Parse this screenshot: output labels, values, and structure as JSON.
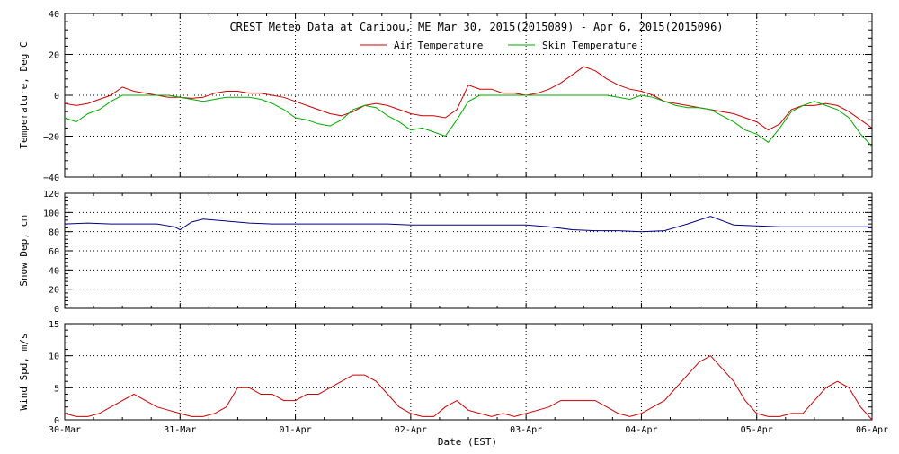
{
  "chart_data": {
    "title": "CREST Meteo Data at Caribou, ME   Mar 30, 2015(2015089) - Apr  6, 2015(2015096)",
    "xlabel": "Date (EST)",
    "x_ticks": [
      "30-Mar",
      "31-Mar",
      "01-Apr",
      "02-Apr",
      "03-Apr",
      "04-Apr",
      "05-Apr",
      "06-Apr"
    ],
    "x_range_days": [
      0,
      7
    ],
    "colors": {
      "air": "#cc0000",
      "skin": "#00aa00",
      "snow": "#000080",
      "wind": "#cc0000",
      "grid": "#000000"
    },
    "panels": [
      {
        "type": "line",
        "ylabel": "Temperature, Deg C",
        "ylim": [
          -40,
          40
        ],
        "y_ticks": [
          "40",
          "20",
          "0",
          "−20",
          "−40"
        ],
        "legend": {
          "placement": "top-center"
        },
        "series": [
          {
            "name": "Air Temperature",
            "key": "air",
            "x": [
              0,
              0.1,
              0.2,
              0.3,
              0.4,
              0.5,
              0.6,
              0.7,
              0.8,
              0.9,
              1.0,
              1.1,
              1.2,
              1.3,
              1.4,
              1.5,
              1.6,
              1.7,
              1.8,
              1.9,
              2.0,
              2.1,
              2.2,
              2.3,
              2.4,
              2.5,
              2.6,
              2.7,
              2.8,
              2.9,
              3.0,
              3.1,
              3.2,
              3.3,
              3.4,
              3.5,
              3.6,
              3.7,
              3.8,
              3.9,
              4.0,
              4.1,
              4.2,
              4.3,
              4.4,
              4.5,
              4.6,
              4.7,
              4.8,
              4.9,
              5.0,
              5.1,
              5.2,
              5.3,
              5.4,
              5.5,
              5.6,
              5.7,
              5.8,
              5.9,
              6.0,
              6.1,
              6.2,
              6.3,
              6.4,
              6.5,
              6.6,
              6.7,
              6.8,
              6.9,
              7.0
            ],
            "values": [
              -4,
              -5,
              -4,
              -2,
              0,
              4,
              2,
              1,
              0,
              -1,
              -1,
              -1.5,
              -1,
              1,
              2,
              2,
              1,
              1,
              0,
              -1,
              -3,
              -5,
              -7,
              -9,
              -10,
              -8,
              -5,
              -4,
              -5,
              -7,
              -9,
              -10,
              -10,
              -11,
              -7,
              5,
              3,
              3,
              1,
              1,
              0,
              1,
              3,
              6,
              10,
              14,
              12,
              8,
              5,
              3,
              2,
              0,
              -3,
              -4,
              -5,
              -6,
              -7,
              -8,
              -9,
              -11,
              -13,
              -17,
              -14,
              -7,
              -5,
              -5,
              -4,
              -5,
              -8,
              -12,
              -16
            ]
          },
          {
            "name": "Skin Temperature",
            "key": "skin",
            "x": [
              0,
              0.1,
              0.2,
              0.3,
              0.4,
              0.5,
              0.6,
              0.7,
              0.8,
              0.9,
              1.0,
              1.1,
              1.2,
              1.3,
              1.4,
              1.5,
              1.6,
              1.7,
              1.8,
              1.9,
              2.0,
              2.1,
              2.2,
              2.3,
              2.4,
              2.5,
              2.6,
              2.7,
              2.8,
              2.9,
              3.0,
              3.1,
              3.2,
              3.3,
              3.4,
              3.5,
              3.6,
              3.7,
              3.8,
              3.9,
              4.0,
              4.1,
              4.2,
              4.3,
              4.4,
              4.5,
              4.6,
              4.7,
              4.8,
              4.9,
              5.0,
              5.1,
              5.2,
              5.3,
              5.4,
              5.5,
              5.6,
              5.7,
              5.8,
              5.9,
              6.0,
              6.1,
              6.2,
              6.3,
              6.4,
              6.5,
              6.6,
              6.7,
              6.8,
              6.9,
              7.0
            ],
            "values": [
              -11,
              -13,
              -9,
              -7,
              -3,
              0,
              0,
              0,
              0,
              0,
              -1,
              -2,
              -3,
              -2,
              -1,
              -1,
              -1,
              -2,
              -4,
              -7,
              -11,
              -12,
              -14,
              -15,
              -12,
              -7,
              -5,
              -6,
              -10,
              -13,
              -17,
              -16,
              -18,
              -20,
              -12,
              -3,
              0,
              0,
              0,
              0,
              0,
              0,
              0,
              0,
              0,
              0,
              0,
              0,
              -1,
              -2,
              0,
              -1,
              -3,
              -5,
              -6,
              -6,
              -7,
              -10,
              -13,
              -17,
              -19,
              -23,
              -16,
              -8,
              -5,
              -3,
              -5,
              -7,
              -11,
              -19,
              -25
            ]
          }
        ]
      },
      {
        "type": "line",
        "ylabel": "Snow Dep, cm",
        "ylim": [
          0,
          120
        ],
        "y_ticks": [
          "120",
          "100",
          "80",
          "60",
          "40",
          "20",
          "0"
        ],
        "series": [
          {
            "key": "snow",
            "x": [
              0,
              0.2,
              0.4,
              0.6,
              0.8,
              0.95,
              1.0,
              1.05,
              1.1,
              1.2,
              1.4,
              1.6,
              1.8,
              2.0,
              2.2,
              2.4,
              2.6,
              2.8,
              3.0,
              3.2,
              3.4,
              3.6,
              3.8,
              4.0,
              4.2,
              4.4,
              4.6,
              4.8,
              5.0,
              5.2,
              5.4,
              5.6,
              5.8,
              6.0,
              6.2,
              6.4,
              6.6,
              6.8,
              7.0
            ],
            "values": [
              88,
              89,
              88,
              88,
              88,
              85,
              82,
              86,
              90,
              93,
              91,
              89,
              88,
              88,
              88,
              88,
              88,
              88,
              87,
              87,
              87,
              87,
              87,
              87,
              85,
              82,
              81,
              81,
              80,
              81,
              88,
              96,
              87,
              86,
              85,
              85,
              85,
              85,
              85
            ]
          }
        ]
      },
      {
        "type": "line",
        "ylabel": "Wind Spd, m/s",
        "ylim": [
          0,
          15
        ],
        "y_ticks": [
          "15",
          "10",
          "5",
          "0"
        ],
        "series": [
          {
            "key": "wind",
            "x": [
              0,
              0.1,
              0.2,
              0.3,
              0.4,
              0.5,
              0.6,
              0.7,
              0.8,
              0.9,
              1.0,
              1.1,
              1.2,
              1.3,
              1.4,
              1.5,
              1.6,
              1.7,
              1.8,
              1.9,
              2.0,
              2.1,
              2.2,
              2.3,
              2.4,
              2.5,
              2.6,
              2.7,
              2.8,
              2.9,
              3.0,
              3.1,
              3.2,
              3.3,
              3.4,
              3.5,
              3.6,
              3.7,
              3.8,
              3.9,
              4.0,
              4.1,
              4.2,
              4.3,
              4.4,
              4.5,
              4.6,
              4.7,
              4.8,
              4.9,
              5.0,
              5.1,
              5.2,
              5.3,
              5.4,
              5.5,
              5.6,
              5.7,
              5.8,
              5.9,
              6.0,
              6.1,
              6.2,
              6.3,
              6.4,
              6.5,
              6.6,
              6.7,
              6.8,
              6.9,
              7.0
            ],
            "values": [
              1,
              0.5,
              0.5,
              1,
              2,
              3,
              4,
              3,
              2,
              1.5,
              1,
              0.5,
              0.5,
              1,
              2,
              5,
              5,
              4,
              4,
              3,
              3,
              4,
              4,
              5,
              6,
              7,
              7,
              6,
              4,
              2,
              1,
              0.5,
              0.5,
              2,
              3,
              1.5,
              1,
              0.5,
              1,
              0.5,
              1,
              1.5,
              2,
              3,
              3,
              3,
              3,
              2,
              1,
              0.5,
              1,
              2,
              3,
              5,
              7,
              9,
              10,
              8,
              6,
              3,
              1,
              0.5,
              0.5,
              1,
              1,
              3,
              5,
              6,
              5,
              2,
              0
            ]
          }
        ]
      }
    ]
  }
}
